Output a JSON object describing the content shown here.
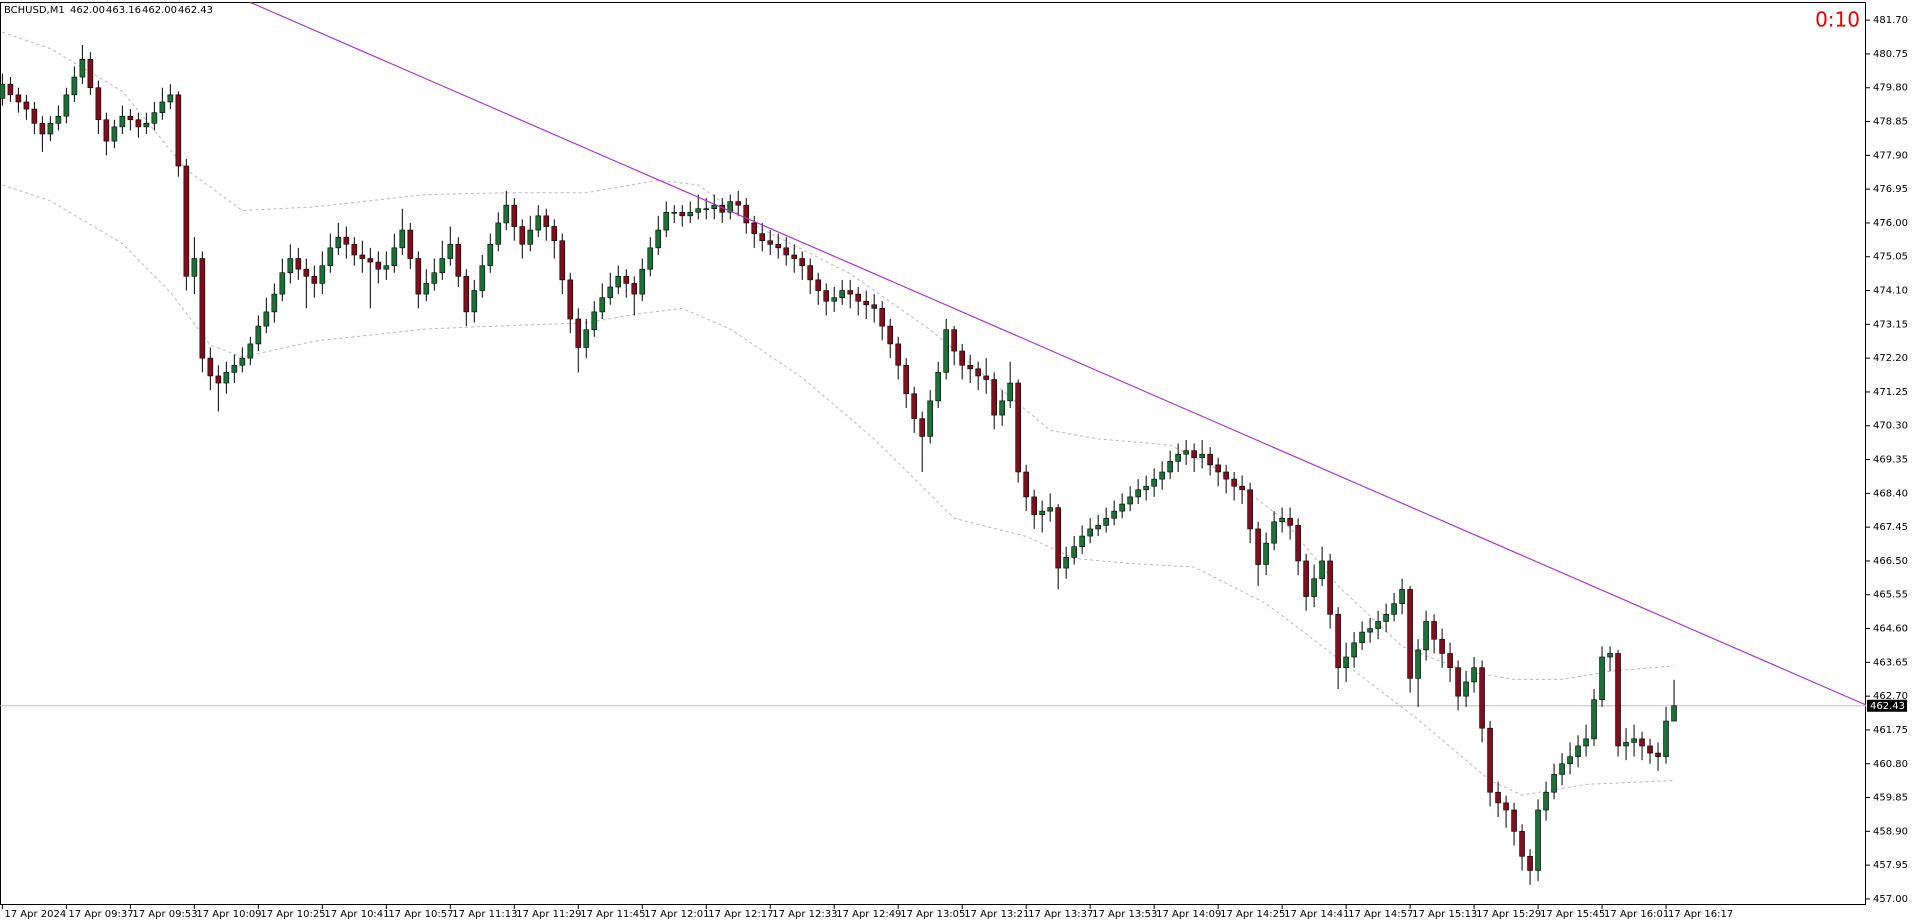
{
  "header": {
    "symbol": "BCHUSD,M1",
    "ohlc": [
      "462.00",
      "463.16",
      "462.00",
      "462.43"
    ],
    "timer": "0:10"
  },
  "chart_data": {
    "type": "candlestick",
    "up_color": "#1f6f3a",
    "down_color": "#7a1020",
    "wick_color": "#000000",
    "xlim": [
      -0.3,
      233
    ],
    "ylim": [
      456.83,
      482.21
    ],
    "xticks": [
      {
        "value": 0,
        "label": "17 Apr 2024"
      },
      {
        "value": 8,
        "label": "17 Apr 09:37"
      },
      {
        "value": 16,
        "label": "17 Apr 09:53"
      },
      {
        "value": 24,
        "label": "17 Apr 10:09"
      },
      {
        "value": 32,
        "label": "17 Apr 10:25"
      },
      {
        "value": 40,
        "label": "17 Apr 10:41"
      },
      {
        "value": 48,
        "label": "17 Apr 10:57"
      },
      {
        "value": 56,
        "label": "17 Apr 11:13"
      },
      {
        "value": 64,
        "label": "17 Apr 11:29"
      },
      {
        "value": 72,
        "label": "17 Apr 11:45"
      },
      {
        "value": 80,
        "label": "17 Apr 12:01"
      },
      {
        "value": 88,
        "label": "17 Apr 12:17"
      },
      {
        "value": 96,
        "label": "17 Apr 12:33"
      },
      {
        "value": 104,
        "label": "17 Apr 12:49"
      },
      {
        "value": 112,
        "label": "17 Apr 13:05"
      },
      {
        "value": 120,
        "label": "17 Apr 13:21"
      },
      {
        "value": 128,
        "label": "17 Apr 13:37"
      },
      {
        "value": 136,
        "label": "17 Apr 13:53"
      },
      {
        "value": 144,
        "label": "17 Apr 14:09"
      },
      {
        "value": 152,
        "label": "17 Apr 14:25"
      },
      {
        "value": 160,
        "label": "17 Apr 14:41"
      },
      {
        "value": 168,
        "label": "17 Apr 14:57"
      },
      {
        "value": 176,
        "label": "17 Apr 15:13"
      },
      {
        "value": 184,
        "label": "17 Apr 15:29"
      },
      {
        "value": 192,
        "label": "17 Apr 15:45"
      },
      {
        "value": 200,
        "label": "17 Apr 16:01"
      },
      {
        "value": 208,
        "label": "17 Apr 16:17"
      }
    ],
    "yticks": [
      {
        "value": 481.7,
        "label": "481.70"
      },
      480.75,
      {
        "value": 479.8,
        "label": "479.80"
      },
      478.85,
      {
        "value": 477.9,
        "label": "477.90"
      },
      476.95,
      {
        "value": 476,
        "label": "476.00"
      },
      475.05,
      {
        "value": 474.1,
        "label": "474.10"
      },
      473.15,
      {
        "value": 472.2,
        "label": "472.20"
      },
      471.25,
      {
        "value": 470.3,
        "label": "470.30"
      },
      469.35,
      {
        "value": 468.4,
        "label": "468.40"
      },
      467.45,
      {
        "value": 466.5,
        "label": "466.50"
      },
      465.55,
      {
        "value": 464.6,
        "label": "464.60"
      },
      463.65,
      {
        "value": 462.7,
        "label": "462.70"
      },
      461.75,
      {
        "value": 460.8,
        "label": "460.80"
      },
      459.85,
      {
        "value": 458.9,
        "label": "458.90"
      },
      457.95,
      {
        "value": 457,
        "label": "457.00"
      }
    ],
    "last_price": 462.43,
    "open": [
      479.5,
      479.9,
      479.6,
      479.4,
      479.2,
      478.8,
      478.5,
      478.8,
      479.0,
      479.6,
      480.1,
      480.6,
      479.8,
      478.9,
      478.3,
      478.7,
      479.0,
      478.9,
      478.7,
      478.8,
      479.1,
      479.4,
      479.6,
      477.6,
      474.5,
      475.0,
      472.2,
      471.7,
      471.5,
      471.8,
      472.0,
      472.2,
      472.6,
      473.1,
      473.5,
      474.0,
      474.6,
      475.0,
      474.7,
      474.5,
      474.3,
      474.8,
      475.3,
      475.6,
      475.4,
      475.1,
      475.0,
      474.9,
      474.7,
      474.8,
      475.3,
      475.8,
      475.0,
      474.0,
      474.3,
      474.6,
      475.0,
      475.4,
      474.5,
      473.5,
      474.1,
      474.8,
      475.4,
      476.0,
      476.5,
      475.9,
      475.4,
      475.8,
      476.2,
      475.9,
      475.5,
      474.4,
      473.3,
      472.5,
      473.0,
      473.5,
      473.9,
      474.2,
      474.5,
      474.3,
      474.0,
      474.7,
      475.3,
      475.8,
      476.3,
      476.3,
      476.2,
      476.3,
      476.4,
      476.4,
      476.5,
      476.3,
      476.6,
      476.5,
      476.0,
      475.7,
      475.5,
      475.4,
      475.3,
      475.1,
      475.0,
      474.8,
      474.4,
      474.1,
      473.8,
      473.9,
      474.1,
      474.0,
      473.8,
      473.7,
      473.6,
      473.1,
      472.6,
      472.0,
      471.2,
      470.5,
      470.0,
      471.0,
      471.8,
      473.0,
      472.4,
      472.0,
      471.9,
      471.7,
      471.6,
      470.6,
      471.0,
      471.5,
      469.0,
      468.3,
      467.8,
      467.9,
      468.0,
      466.3,
      466.6,
      466.9,
      467.2,
      467.4,
      467.5,
      467.7,
      467.9,
      468.1,
      468.3,
      468.5,
      468.6,
      468.8,
      469.0,
      469.3,
      469.5,
      469.6,
      469.4,
      469.5,
      469.2,
      469.0,
      468.8,
      468.6,
      468.5,
      467.4,
      466.4,
      467.0,
      467.6,
      467.7,
      467.5,
      466.5,
      465.5,
      466.0,
      466.5,
      465.0,
      463.5,
      463.8,
      464.2,
      464.5,
      464.6,
      464.8,
      465.0,
      465.3,
      465.7,
      463.2,
      464.0,
      464.8,
      464.3,
      463.9,
      463.5,
      462.7,
      463.1,
      463.5,
      461.8,
      460.0,
      459.7,
      459.5,
      458.9,
      458.2,
      457.8,
      459.5,
      460.0,
      460.5,
      460.8,
      461.0,
      461.3,
      461.5,
      462.6,
      463.8,
      463.9,
      461.3,
      461.4,
      461.5,
      461.3,
      461.1,
      461.0,
      462.0
    ],
    "high": [
      480.2,
      480.1,
      479.8,
      479.6,
      479.4,
      479.0,
      479.0,
      479.3,
      479.8,
      480.4,
      481.0,
      480.8,
      480.0,
      479.1,
      478.9,
      479.3,
      479.2,
      479.1,
      479.1,
      479.4,
      479.8,
      479.9,
      479.7,
      477.8,
      475.6,
      475.2,
      472.5,
      472.0,
      472.1,
      472.3,
      472.5,
      472.8,
      473.4,
      473.9,
      474.3,
      475.0,
      475.4,
      475.3,
      475.0,
      474.8,
      475.2,
      475.7,
      476.0,
      475.9,
      475.6,
      475.5,
      475.3,
      475.2,
      475.2,
      475.7,
      476.4,
      476.0,
      475.2,
      474.7,
      475.0,
      475.5,
      475.9,
      475.6,
      474.7,
      474.4,
      475.1,
      475.7,
      476.3,
      476.9,
      476.7,
      476.1,
      476.2,
      476.5,
      476.4,
      476.1,
      475.7,
      474.6,
      473.6,
      473.3,
      473.8,
      474.3,
      474.6,
      474.8,
      474.7,
      474.5,
      475.0,
      475.6,
      476.2,
      476.6,
      476.5,
      476.5,
      476.6,
      476.8,
      476.7,
      476.8,
      476.7,
      476.8,
      476.9,
      476.7,
      476.2,
      476.0,
      475.8,
      475.7,
      475.6,
      475.4,
      475.2,
      475.0,
      474.6,
      474.3,
      474.2,
      474.4,
      474.4,
      474.2,
      474.1,
      474.0,
      473.8,
      473.3,
      472.8,
      472.2,
      471.4,
      470.7,
      471.3,
      472.1,
      473.3,
      473.1,
      472.6,
      472.3,
      472.1,
      472.2,
      471.8,
      471.3,
      472.1,
      471.6,
      469.2,
      468.5,
      468.2,
      468.4,
      468.1,
      466.9,
      467.2,
      467.5,
      467.7,
      467.8,
      468.0,
      468.2,
      468.4,
      468.6,
      468.8,
      468.9,
      469.1,
      469.3,
      469.6,
      469.8,
      469.9,
      469.8,
      469.9,
      469.7,
      469.4,
      469.2,
      469.0,
      468.9,
      468.7,
      467.6,
      467.3,
      467.9,
      468.0,
      468.0,
      467.7,
      466.7,
      466.4,
      466.9,
      466.7,
      465.2,
      464.2,
      464.5,
      464.8,
      464.9,
      465.1,
      465.3,
      465.6,
      466.0,
      465.8,
      464.3,
      465.1,
      465.0,
      464.6,
      464.2,
      463.7,
      463.4,
      463.8,
      463.7,
      462.0,
      460.3,
      459.9,
      459.7,
      459.1,
      458.4,
      459.8,
      460.3,
      460.8,
      461.1,
      461.4,
      461.6,
      461.9,
      462.9,
      464.1,
      464.1,
      464.0,
      461.8,
      461.9,
      461.7,
      461.5,
      461.4,
      462.4,
      463.16
    ],
    "low": [
      479.3,
      479.4,
      479.1,
      478.9,
      478.5,
      478.0,
      478.3,
      478.6,
      478.8,
      479.4,
      479.9,
      479.6,
      478.5,
      477.9,
      478.1,
      478.5,
      478.6,
      478.4,
      478.5,
      478.6,
      478.9,
      479.2,
      477.3,
      474.1,
      474.0,
      471.8,
      471.3,
      470.7,
      471.2,
      471.5,
      471.8,
      472.0,
      472.4,
      472.9,
      473.2,
      473.8,
      474.3,
      474.4,
      473.6,
      473.9,
      474.0,
      474.6,
      475.1,
      475.0,
      474.8,
      474.6,
      473.6,
      474.3,
      474.4,
      474.6,
      475.1,
      474.7,
      473.6,
      473.8,
      474.1,
      474.4,
      474.8,
      474.2,
      473.1,
      473.2,
      473.9,
      474.6,
      475.2,
      475.8,
      475.5,
      475.0,
      475.2,
      475.6,
      475.5,
      475.0,
      474.0,
      472.9,
      471.8,
      472.2,
      472.8,
      473.3,
      473.7,
      474.0,
      473.9,
      473.4,
      473.8,
      474.5,
      475.1,
      475.6,
      476.0,
      475.9,
      476.0,
      476.1,
      476.1,
      476.1,
      476.0,
      476.1,
      476.2,
      475.7,
      475.3,
      475.2,
      475.1,
      475.0,
      474.8,
      474.6,
      474.4,
      474.0,
      473.7,
      473.4,
      473.5,
      473.7,
      473.6,
      473.4,
      473.3,
      473.2,
      472.7,
      472.2,
      471.6,
      470.8,
      470.1,
      469.0,
      469.8,
      470.8,
      471.6,
      472.0,
      471.6,
      471.5,
      471.3,
      471.2,
      470.2,
      470.3,
      470.8,
      468.7,
      467.9,
      467.4,
      467.3,
      467.6,
      465.7,
      466.0,
      466.4,
      466.7,
      467.0,
      467.2,
      467.3,
      467.5,
      467.7,
      467.9,
      468.1,
      468.2,
      468.3,
      468.5,
      468.8,
      469.0,
      469.2,
      469.0,
      469.1,
      468.9,
      468.6,
      468.4,
      468.2,
      468.1,
      467.0,
      465.8,
      466.1,
      466.8,
      467.3,
      467.1,
      466.1,
      465.1,
      465.2,
      465.8,
      464.6,
      462.9,
      463.1,
      463.5,
      464.0,
      464.2,
      464.3,
      464.5,
      464.8,
      465.0,
      462.8,
      462.4,
      463.7,
      463.9,
      463.5,
      463.1,
      462.3,
      462.4,
      462.8,
      461.4,
      459.6,
      459.3,
      459.0,
      458.5,
      457.8,
      457.4,
      457.5,
      459.2,
      459.8,
      460.2,
      460.5,
      460.7,
      461.0,
      461.3,
      462.4,
      463.4,
      461.0,
      460.9,
      461.0,
      460.9,
      460.8,
      460.6,
      460.8,
      462.0
    ],
    "close": [
      479.9,
      479.6,
      479.4,
      479.2,
      478.8,
      478.5,
      478.8,
      479.0,
      479.6,
      480.1,
      480.6,
      479.8,
      478.9,
      478.3,
      478.7,
      479.0,
      478.9,
      478.7,
      478.8,
      479.1,
      479.4,
      479.6,
      477.6,
      474.5,
      475.0,
      472.2,
      471.7,
      471.5,
      471.8,
      472.0,
      472.2,
      472.6,
      473.1,
      473.5,
      474.0,
      474.6,
      475.0,
      474.7,
      474.5,
      474.3,
      474.8,
      475.3,
      475.6,
      475.4,
      475.1,
      475.0,
      474.9,
      474.7,
      474.8,
      475.3,
      475.8,
      475.0,
      474.0,
      474.3,
      474.6,
      475.0,
      475.4,
      474.5,
      473.5,
      474.1,
      474.8,
      475.4,
      476.0,
      476.5,
      475.9,
      475.4,
      475.8,
      476.2,
      475.9,
      475.5,
      474.4,
      473.3,
      472.5,
      473.0,
      473.5,
      473.9,
      474.2,
      474.5,
      474.3,
      474.0,
      474.7,
      475.3,
      475.8,
      476.3,
      476.3,
      476.2,
      476.3,
      476.4,
      476.4,
      476.5,
      476.3,
      476.6,
      476.5,
      476.0,
      475.7,
      475.5,
      475.4,
      475.3,
      475.1,
      475.0,
      474.8,
      474.4,
      474.1,
      473.8,
      473.9,
      474.1,
      474.0,
      473.8,
      473.7,
      473.6,
      473.1,
      472.6,
      472.0,
      471.2,
      470.5,
      470.0,
      471.0,
      471.8,
      473.0,
      472.4,
      472.0,
      471.9,
      471.7,
      471.6,
      470.6,
      471.0,
      471.5,
      469.0,
      468.3,
      467.8,
      467.9,
      468.0,
      466.3,
      466.6,
      466.9,
      467.2,
      467.4,
      467.5,
      467.7,
      467.9,
      468.1,
      468.3,
      468.5,
      468.6,
      468.8,
      469.0,
      469.3,
      469.5,
      469.6,
      469.4,
      469.5,
      469.2,
      469.0,
      468.8,
      468.6,
      468.5,
      467.4,
      466.4,
      467.0,
      467.6,
      467.7,
      467.5,
      466.5,
      465.5,
      466.0,
      466.5,
      465.0,
      463.5,
      463.8,
      464.2,
      464.5,
      464.6,
      464.8,
      465.0,
      465.3,
      465.7,
      463.2,
      464.0,
      464.8,
      464.3,
      463.9,
      463.5,
      462.7,
      463.1,
      463.5,
      461.8,
      460.0,
      459.7,
      459.5,
      458.9,
      458.2,
      457.8,
      459.5,
      460.0,
      460.5,
      460.8,
      461.0,
      461.3,
      461.5,
      462.6,
      463.8,
      463.9,
      461.3,
      461.4,
      461.5,
      461.3,
      461.1,
      461.0,
      462.0,
      462.43
    ],
    "bands": [
      {
        "color": "#b8b8b8",
        "x": [
          0,
          6,
          15,
          23,
          30,
          39,
          53,
          64,
          73,
          82,
          87,
          94,
          106,
          116,
          125,
          131,
          137,
          146,
          152,
          160,
          167,
          175,
          183,
          189,
          195,
          201,
          209
        ],
        "values": [
          481.36,
          480.9,
          479.7,
          477.5,
          476.35,
          476.45,
          476.8,
          476.85,
          476.85,
          477.2,
          477.07,
          475.94,
          474.57,
          473.0,
          471.3,
          470.17,
          469.93,
          469.76,
          469.08,
          467.7,
          465.8,
          464.1,
          463.4,
          463.17,
          463.17,
          463.4,
          463.55
        ]
      },
      {
        "color": "#b8b8b8",
        "x": [
          0,
          6,
          15,
          21,
          26,
          30,
          39,
          53,
          64,
          73,
          79,
          85,
          91,
          100,
          109,
          119,
          128,
          134,
          141,
          149,
          158,
          167,
          177,
          186,
          190,
          198,
          209
        ],
        "values": [
          477.07,
          476.62,
          475.42,
          474.05,
          472.57,
          472.23,
          472.68,
          473.02,
          473.12,
          473.19,
          473.43,
          473.6,
          473.02,
          471.65,
          469.93,
          467.7,
          467.19,
          466.57,
          466.43,
          466.33,
          465.3,
          463.76,
          462.04,
          460.33,
          459.92,
          460.22,
          460.33
        ]
      }
    ],
    "trendline": {
      "color": "#a43bc4",
      "x": [
        31,
        233
      ],
      "values": [
        482.2,
        462.45
      ]
    }
  }
}
